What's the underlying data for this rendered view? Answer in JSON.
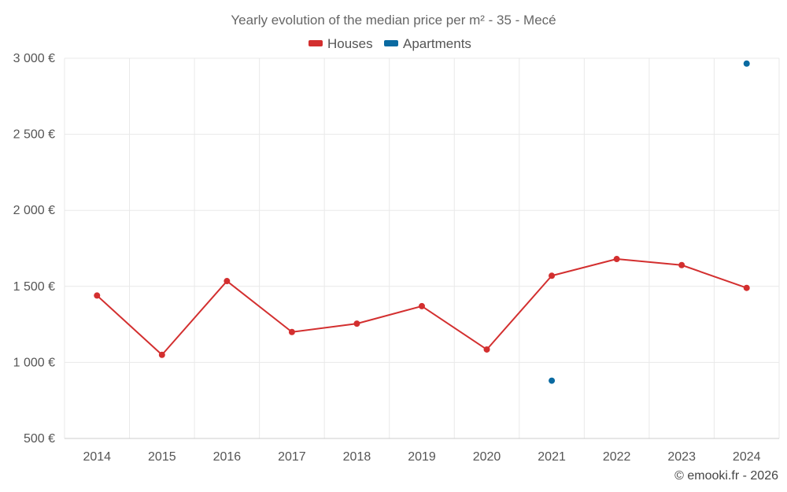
{
  "chart_data": {
    "type": "line",
    "title": "Yearly evolution of the median price per m² - 35 - Mecé",
    "categories": [
      "2014",
      "2015",
      "2016",
      "2017",
      "2018",
      "2019",
      "2020",
      "2021",
      "2022",
      "2023",
      "2024"
    ],
    "y_ticks": [
      "500 €",
      "1 000 €",
      "1 500 €",
      "2 000 €",
      "2 500 €",
      "3 000 €"
    ],
    "ylim": [
      500,
      3000
    ],
    "grid": true,
    "legend_position": "top-center",
    "series": [
      {
        "name": "Houses",
        "color": "#d32f2f",
        "values": [
          1440,
          1050,
          1535,
          1200,
          1255,
          1370,
          1085,
          1570,
          1680,
          1640,
          1490
        ]
      },
      {
        "name": "Apartments",
        "color": "#0a6aa1",
        "values": [
          null,
          null,
          null,
          null,
          null,
          null,
          null,
          880,
          null,
          null,
          2965
        ]
      }
    ]
  },
  "credit": "© emooki.fr - 2026"
}
